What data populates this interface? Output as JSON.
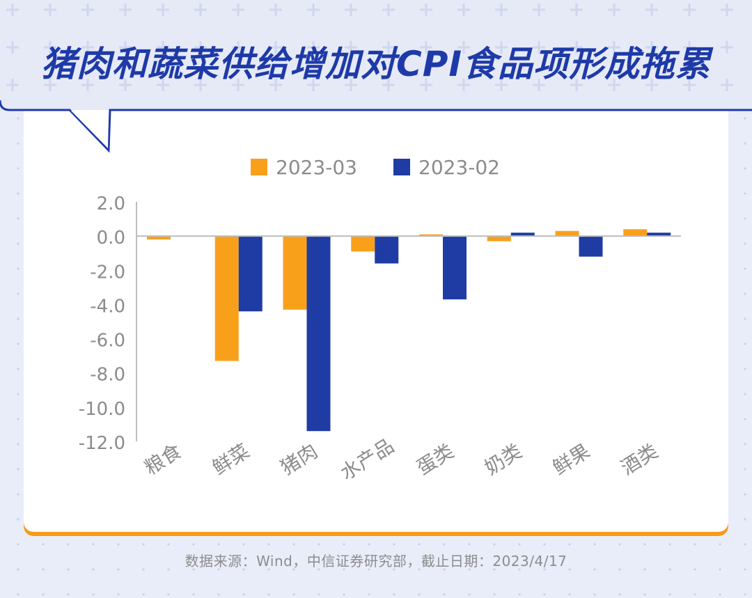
{
  "title": "猪肉和蔬菜供给增加对CPI食品项形成拖累",
  "source": "数据来源：Wind，中信证券研究部，截止日期：2023/4/17",
  "colors": {
    "series_2023_03": "#f9a01b",
    "series_2023_02": "#1f3ca4",
    "title": "#1e3aa8",
    "accent_bar": "#f59c1a"
  },
  "chart_data": {
    "type": "bar",
    "title": "",
    "xlabel": "",
    "ylabel": "",
    "categories": [
      "粮食",
      "鲜菜",
      "猪肉",
      "水产品",
      "蛋类",
      "奶类",
      "鲜果",
      "酒类"
    ],
    "series": [
      {
        "name": "2023-03",
        "values": [
          -0.2,
          -7.3,
          -4.3,
          -0.9,
          0.1,
          -0.3,
          0.3,
          0.4
        ]
      },
      {
        "name": "2023-02",
        "values": [
          0.0,
          -4.4,
          -11.4,
          -1.6,
          -3.7,
          0.2,
          -1.2,
          0.2
        ]
      }
    ],
    "ylim": [
      -12,
      2
    ],
    "yticks": [
      "2.0",
      "0.0",
      "-2.0",
      "-4.0",
      "-6.0",
      "-8.0",
      "-10.0",
      "-12.0"
    ],
    "ytick_values": [
      2,
      0,
      -2,
      -4,
      -6,
      -8,
      -10,
      -12
    ],
    "legend_position": "top",
    "grid": false
  }
}
